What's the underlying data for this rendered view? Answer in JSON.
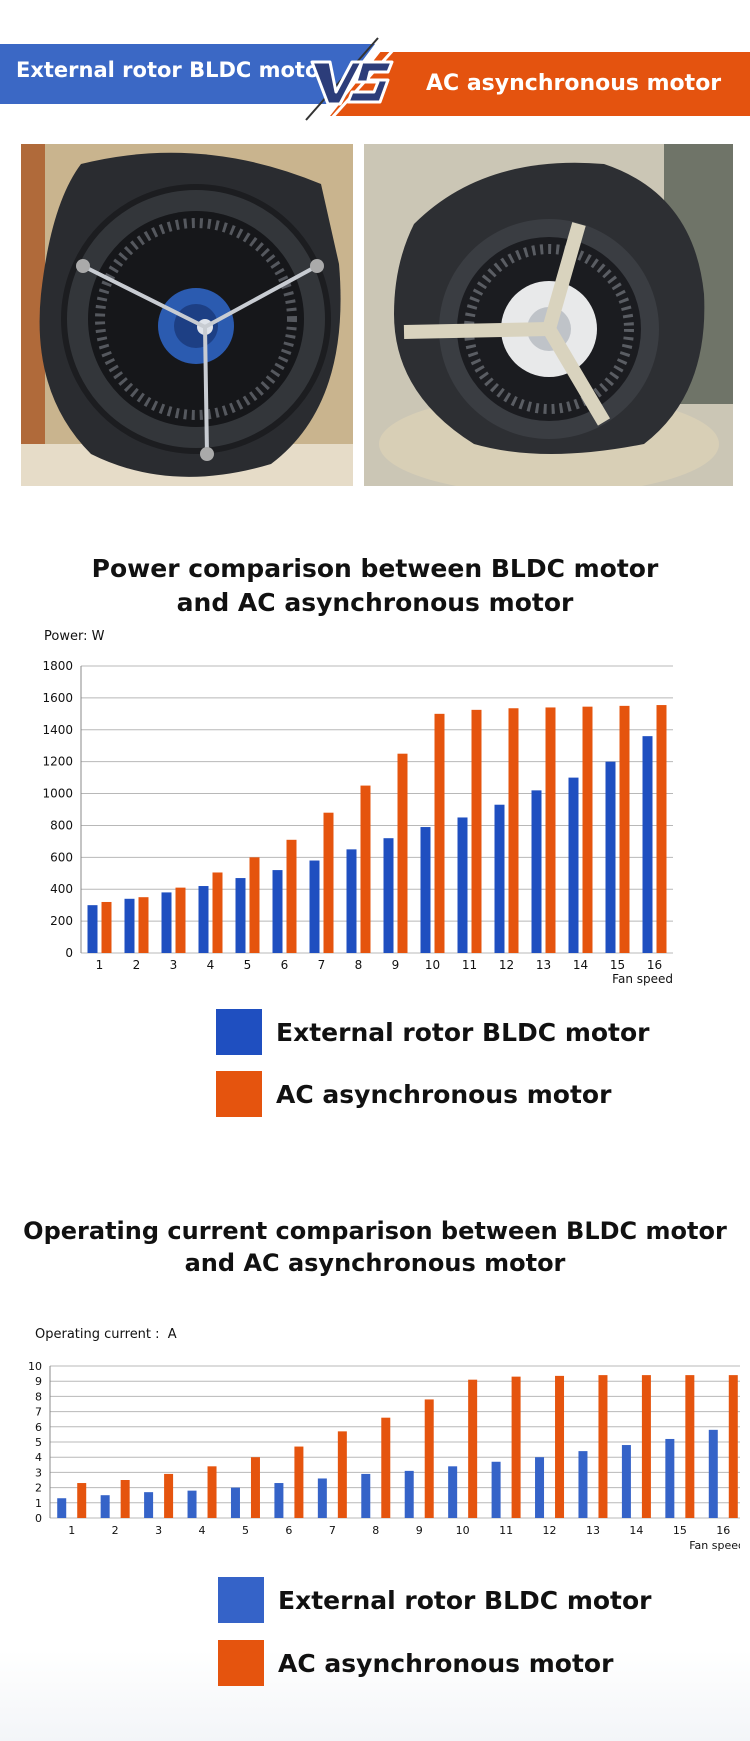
{
  "banner": {
    "left_label": "External rotor BLDC motor",
    "right_label": "AC asynchronous motor",
    "colors": {
      "left": "#3b68c5",
      "right": "#e4530f"
    }
  },
  "photos": [
    {
      "name": "BLDC motor blower photo"
    },
    {
      "name": "AC motor blower photo"
    }
  ],
  "colors": {
    "bldc": "#1f4fc0",
    "ac": "#e5540e"
  },
  "chart_data": [
    {
      "type": "bar",
      "title_line1": "Power comparison between BLDC motor",
      "title_line2": "and AC asynchronous motor",
      "unit_label": "Power:  W",
      "xlabel": "Fan speed",
      "categories": [
        "1",
        "2",
        "3",
        "4",
        "5",
        "6",
        "7",
        "8",
        "9",
        "10",
        "11",
        "12",
        "13",
        "14",
        "15",
        "16"
      ],
      "series": [
        {
          "name": "External rotor BLDC motor",
          "color": "#1f4fc0",
          "values": [
            300,
            340,
            380,
            420,
            470,
            520,
            580,
            650,
            720,
            790,
            850,
            930,
            1020,
            1100,
            1200,
            1360
          ]
        },
        {
          "name": "AC asynchronous motor",
          "color": "#e5540e",
          "values": [
            320,
            350,
            410,
            505,
            600,
            710,
            880,
            1050,
            1250,
            1500,
            1525,
            1535,
            1540,
            1545,
            1550,
            1555
          ]
        }
      ],
      "ylim": [
        0,
        1800
      ],
      "yticks": [
        "0",
        "200",
        "400",
        "600",
        "800",
        "1000",
        "1200",
        "1400",
        "1600",
        "1800"
      ],
      "grid": true,
      "legend": "bottom"
    },
    {
      "type": "bar",
      "title_line1": "Operating current comparison between BLDC motor",
      "title_line2": "and  AC asynchronous motor",
      "unit_label": "Operating current :  A",
      "xlabel": "Fan speed",
      "categories": [
        "1",
        "2",
        "3",
        "4",
        "5",
        "6",
        "7",
        "8",
        "9",
        "10",
        "11",
        "12",
        "13",
        "14",
        "15",
        "16"
      ],
      "series": [
        {
          "name": "External rotor BLDC motor",
          "color": "#3563c8",
          "values": [
            1.3,
            1.5,
            1.7,
            1.8,
            2.0,
            2.3,
            2.6,
            2.9,
            3.1,
            3.4,
            3.7,
            4.0,
            4.4,
            4.8,
            5.2,
            5.8
          ]
        },
        {
          "name": "AC asynchronous motor",
          "color": "#e5540e",
          "values": [
            2.3,
            2.5,
            2.9,
            3.4,
            4.0,
            4.7,
            5.7,
            6.6,
            7.8,
            9.1,
            9.3,
            9.35,
            9.4,
            9.4,
            9.4,
            9.4
          ]
        }
      ],
      "ylim": [
        0,
        10
      ],
      "yticks": [
        "0",
        "1",
        "2",
        "3",
        "4",
        "5",
        "6",
        "7",
        "8",
        "9",
        "10"
      ],
      "grid": true,
      "legend": "bottom"
    }
  ]
}
